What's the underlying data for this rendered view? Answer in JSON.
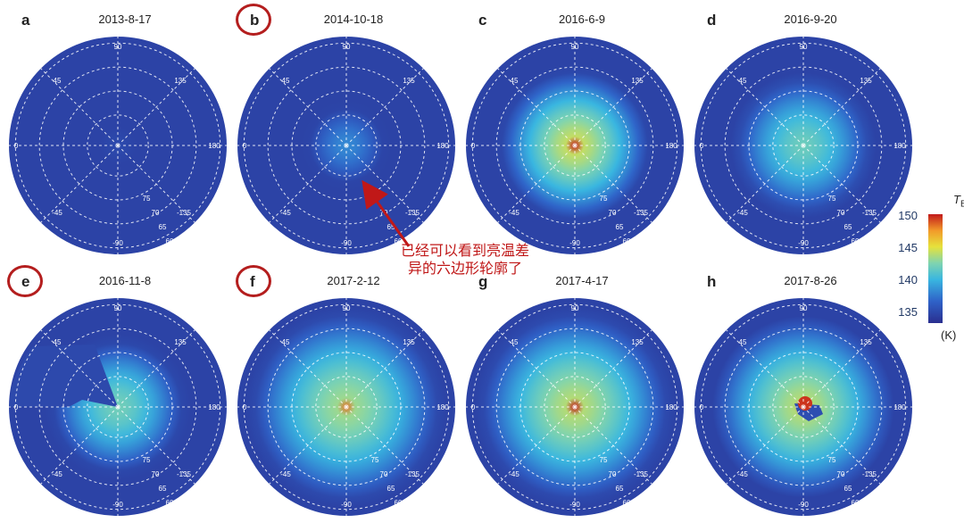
{
  "panels": [
    {
      "letter": "a",
      "date": "2013-8-17",
      "circled": false,
      "core": 0.05,
      "spread": 0.12,
      "hot": 0.0,
      "hex": 0.0
    },
    {
      "letter": "b",
      "date": "2014-10-18",
      "circled": true,
      "core": 0.35,
      "spread": 0.34,
      "hot": 0.0,
      "hex": 0.0
    },
    {
      "letter": "c",
      "date": "2016-6-9",
      "circled": false,
      "core": 0.95,
      "spread": 0.68,
      "hot": 1.0,
      "hex": 0.0
    },
    {
      "letter": "d",
      "date": "2016-9-20",
      "circled": false,
      "core": 0.7,
      "spread": 0.62,
      "hot": 0.0,
      "hex": 0.0
    },
    {
      "letter": "e",
      "date": "2016-11-8",
      "circled": true,
      "core": 0.72,
      "spread": 0.6,
      "hot": 0.0,
      "hex": 0.0,
      "wedge": true
    },
    {
      "letter": "f",
      "date": "2017-2-12",
      "circled": true,
      "core": 0.85,
      "spread": 0.86,
      "hot": 0.6,
      "hex": 0.0
    },
    {
      "letter": "g",
      "date": "2017-4-17",
      "circled": false,
      "core": 0.9,
      "spread": 0.86,
      "hot": 1.0,
      "hex": 0.0
    },
    {
      "letter": "h",
      "date": "2017-8-26",
      "circled": false,
      "core": 0.9,
      "spread": 0.82,
      "hot": 1.0,
      "hex": 1.0
    }
  ],
  "grid_labels": {
    "lon": [
      "90",
      "45",
      "0",
      "-45",
      "-90",
      "135",
      "180",
      "-135"
    ],
    "lat": [
      "75",
      "70",
      "65",
      "60"
    ]
  },
  "annotation": {
    "line1": "已经可以看到亮温差",
    "line2": "异的六边形轮廓了"
  },
  "colorbar": {
    "label": "T",
    "sub": "B",
    "ticks": [
      "150",
      "145",
      "140",
      "135"
    ],
    "unit": "(K)",
    "min": 133,
    "max": 150
  },
  "colors": {
    "bg_disk": "#2a3a9a",
    "circle_highlight": "#b41e1e",
    "arrow": "#c01818"
  }
}
